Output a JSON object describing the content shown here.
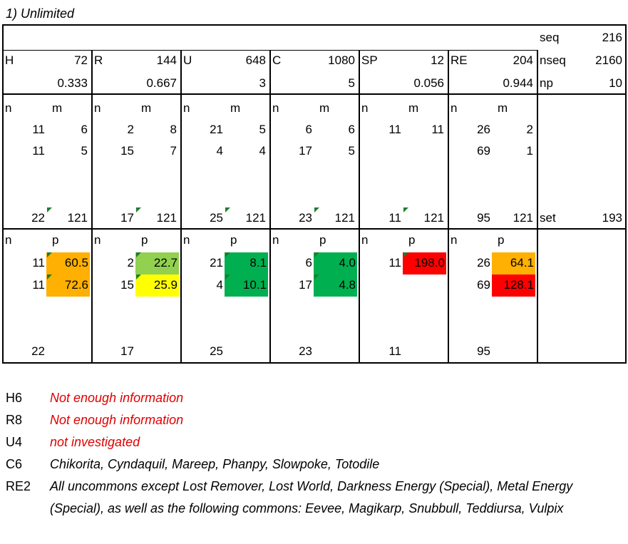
{
  "title": "1) Unlimited",
  "summary": {
    "seq_label": "seq",
    "seq_value": "216",
    "nseq_label": "nseq",
    "nseq_value": "2160",
    "np_label": "np",
    "np_value": "10",
    "set_label": "set",
    "set_value": "193"
  },
  "groups": [
    {
      "label": "H",
      "total": "72",
      "ratio": "0.333",
      "nm": [
        [
          "11",
          "6"
        ],
        [
          "11",
          "5"
        ]
      ],
      "nm_n_total": "22",
      "nm_m_total": "121",
      "np": [
        {
          "n": "11",
          "p": "60.5",
          "color": "#ffb000"
        },
        {
          "n": "11",
          "p": "72.6",
          "color": "#ffb000"
        }
      ],
      "np_total": "22"
    },
    {
      "label": "R",
      "total": "144",
      "ratio": "0.667",
      "nm": [
        [
          "2",
          "8"
        ],
        [
          "15",
          "7"
        ]
      ],
      "nm_n_total": "17",
      "nm_m_total": "121",
      "np": [
        {
          "n": "2",
          "p": "22.7",
          "color": "#92d050"
        },
        {
          "n": "15",
          "p": "25.9",
          "color": "#ffff00"
        }
      ],
      "np_total": "17"
    },
    {
      "label": "U",
      "total": "648",
      "ratio": "3",
      "nm": [
        [
          "21",
          "5"
        ],
        [
          "4",
          "4"
        ]
      ],
      "nm_n_total": "25",
      "nm_m_total": "121",
      "np": [
        {
          "n": "21",
          "p": "8.1",
          "color": "#00b050"
        },
        {
          "n": "4",
          "p": "10.1",
          "color": "#00b050"
        }
      ],
      "np_total": "25"
    },
    {
      "label": "C",
      "total": "1080",
      "ratio": "5",
      "nm": [
        [
          "6",
          "6"
        ],
        [
          "17",
          "5"
        ]
      ],
      "nm_n_total": "23",
      "nm_m_total": "121",
      "np": [
        {
          "n": "6",
          "p": "4.0",
          "color": "#00b050"
        },
        {
          "n": "17",
          "p": "4.8",
          "color": "#00b050"
        }
      ],
      "np_total": "23"
    },
    {
      "label": "SP",
      "total": "12",
      "ratio": "0.056",
      "nm": [
        [
          "11",
          "11"
        ]
      ],
      "nm_n_total": "11",
      "nm_m_total": "121",
      "np": [
        {
          "n": "11",
          "p": "198.0",
          "color": "#ff0000"
        }
      ],
      "np_total": "11"
    },
    {
      "label": "RE",
      "total": "204",
      "ratio": "0.944",
      "nm": [
        [
          "26",
          "2"
        ],
        [
          "69",
          "1"
        ]
      ],
      "nm_n_total": "95",
      "nm_m_total": "121",
      "np": [
        {
          "n": "26",
          "p": "64.1",
          "color": "#ffb000"
        },
        {
          "n": "69",
          "p": "128.1",
          "color": "#ff0000"
        }
      ],
      "np_total": "95"
    }
  ],
  "headers": {
    "n": "n",
    "m": "m",
    "p": "p"
  },
  "notes": [
    {
      "key": "H6",
      "text": "Not enough information",
      "red": true
    },
    {
      "key": "R8",
      "text": "Not enough information",
      "red": true
    },
    {
      "key": "U4",
      "text": "not investigated",
      "red": true
    },
    {
      "key": "C6",
      "text": "Chikorita, Cyndaquil, Mareep, Phanpy, Slowpoke, Totodile",
      "red": false
    },
    {
      "key": "RE2",
      "text": "All uncommons except Lost Remover, Lost World, Darkness Energy (Special), Metal Energy (Special), as well as the following commons: Eevee, Magikarp, Snubbull, Teddiursa, Vulpix",
      "red": false
    }
  ]
}
